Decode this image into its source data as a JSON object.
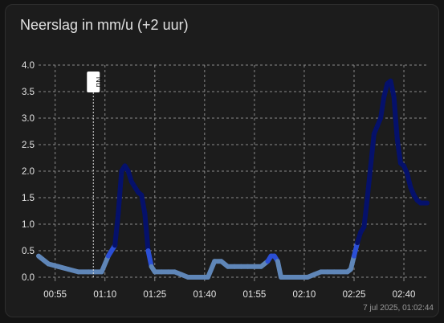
{
  "card": {
    "title": "Neerslag in mm/u (+2 uur)",
    "timestamp": "7 jul 2025, 01:02:44"
  },
  "colors": {
    "background": "#141414",
    "card": "#1c1c1c",
    "grid": "#8a8a8a",
    "low": "#5f86b8",
    "mid": "#2b4fd6",
    "high": "#05116b"
  },
  "chart_data": {
    "type": "line",
    "title": "Neerslag in mm/u (+2 uur)",
    "xlabel": "",
    "ylabel": "",
    "ylim": [
      0,
      4
    ],
    "yticks": [
      "0.0",
      "0.5",
      "1.0",
      "1.5",
      "2.0",
      "2.5",
      "3.0",
      "3.5",
      "4.0"
    ],
    "xticks": [
      {
        "label": "00:55",
        "min": 55
      },
      {
        "label": "01:10",
        "min": 70
      },
      {
        "label": "01:25",
        "min": 85
      },
      {
        "label": "01:40",
        "min": 100
      },
      {
        "label": "01:55",
        "min": 115
      },
      {
        "label": "02:10",
        "min": 130
      },
      {
        "label": "02:25",
        "min": 145
      },
      {
        "label": "02:40",
        "min": 160
      }
    ],
    "grid": true,
    "now_marker": {
      "label": "Nu",
      "min": 66.5
    },
    "series": [
      {
        "name": "",
        "x": [
          50,
          53,
          56,
          59,
          62,
          65,
          67,
          69,
          71,
          73,
          74,
          75,
          76,
          77,
          78,
          79,
          80,
          81,
          82,
          83,
          84,
          85,
          87,
          89,
          91,
          93,
          95,
          97,
          99,
          101,
          103,
          105,
          107,
          109,
          111,
          113,
          115,
          117,
          119,
          120,
          121,
          122,
          123,
          125,
          127,
          129,
          131,
          133,
          135,
          137,
          139,
          141,
          143,
          144,
          145,
          146,
          147,
          148,
          149,
          150,
          151,
          152,
          153,
          154,
          155,
          156,
          157,
          158,
          159,
          160,
          161,
          162,
          163,
          164,
          165,
          166,
          167
        ],
        "values": [
          0.4,
          0.25,
          0.2,
          0.15,
          0.1,
          0.1,
          0.1,
          0.1,
          0.4,
          0.6,
          1.2,
          2.0,
          2.1,
          2.0,
          1.8,
          1.7,
          1.6,
          1.55,
          1.2,
          0.5,
          0.2,
          0.1,
          0.1,
          0.1,
          0.1,
          0.05,
          0.0,
          0.0,
          0.0,
          0.0,
          0.3,
          0.3,
          0.2,
          0.2,
          0.2,
          0.2,
          0.2,
          0.2,
          0.3,
          0.4,
          0.4,
          0.3,
          0.0,
          0.0,
          0.0,
          0.0,
          0.0,
          0.05,
          0.1,
          0.1,
          0.1,
          0.1,
          0.1,
          0.15,
          0.4,
          0.65,
          0.85,
          0.95,
          1.5,
          2.1,
          2.7,
          2.85,
          3.0,
          3.4,
          3.65,
          3.7,
          3.4,
          2.6,
          2.15,
          2.1,
          1.95,
          1.7,
          1.55,
          1.45,
          1.4,
          1.4,
          1.4
        ]
      }
    ]
  }
}
